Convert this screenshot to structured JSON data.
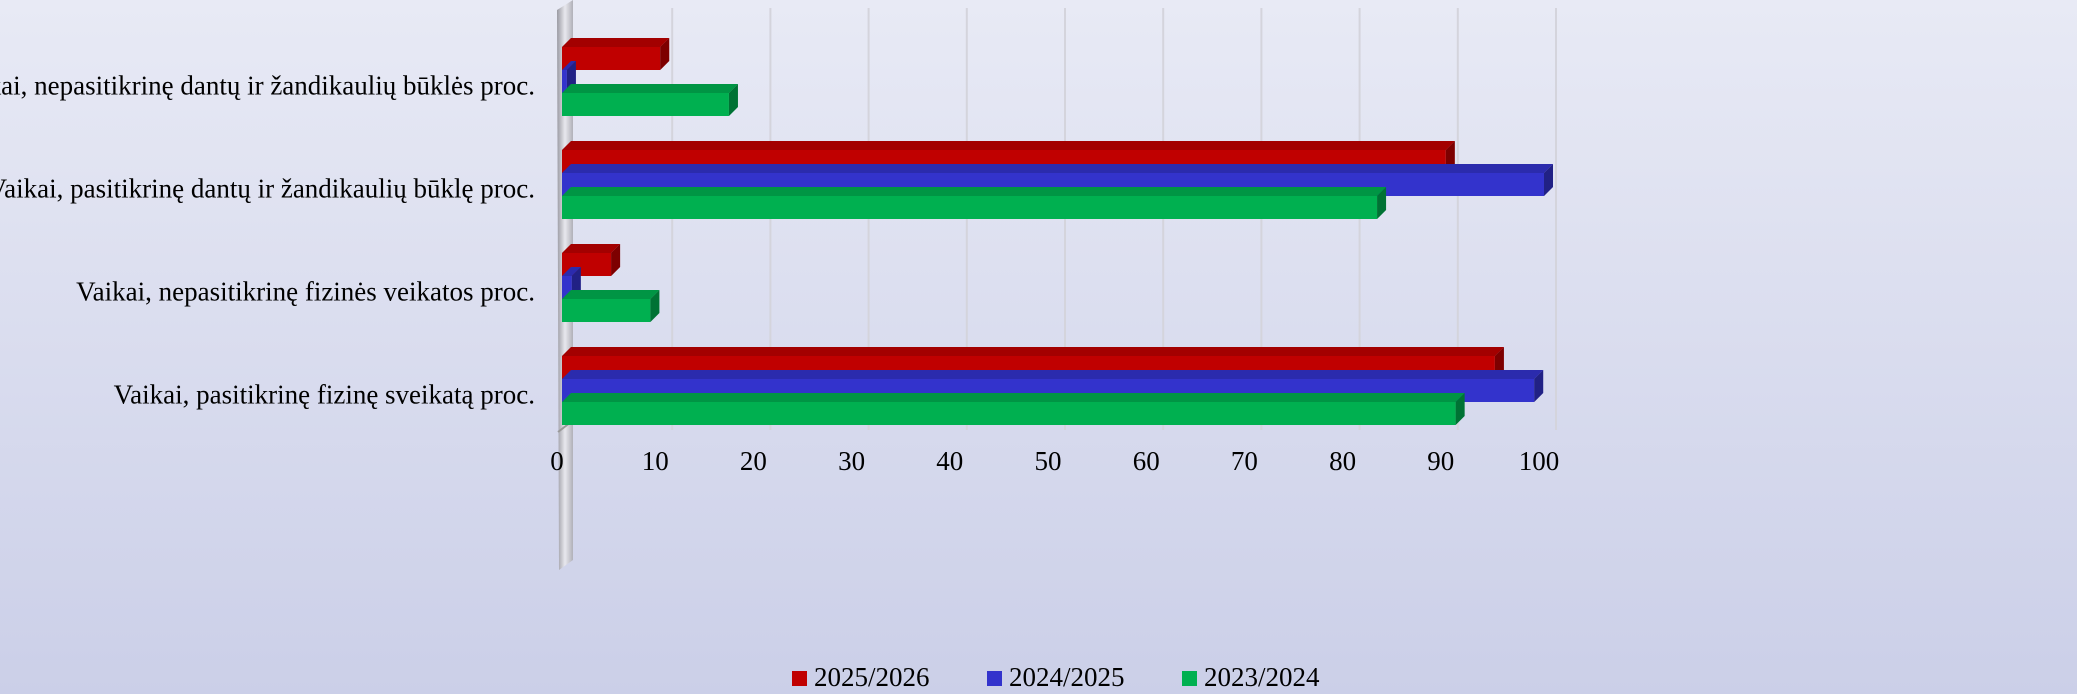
{
  "chart_data": {
    "type": "hbar3d",
    "categories": [
      "Vaikai, nepasitikrinę dantų ir žandikaulių būklės proc.",
      "Vaikai, pasitikrinę dantų ir žandikaulių būklę proc.",
      "Vaikai, nepasitikrinę fizinės veikatos proc.",
      "Vaikai, pasitikrinę fizinę sveikatą proc."
    ],
    "series": [
      {
        "name": "2025/2026",
        "color": "#c00000",
        "values": [
          10,
          90,
          5,
          95
        ]
      },
      {
        "name": "2024/2025",
        "color": "#3333cc",
        "values": [
          0.5,
          100,
          1,
          99
        ]
      },
      {
        "name": "2023/2024",
        "color": "#00b050",
        "values": [
          17,
          83,
          9,
          91
        ]
      }
    ],
    "xlim": [
      0,
      100
    ],
    "xticks": [
      0,
      10,
      20,
      30,
      40,
      50,
      60,
      70,
      80,
      90,
      100
    ],
    "grid": true,
    "legend": "bottom"
  }
}
